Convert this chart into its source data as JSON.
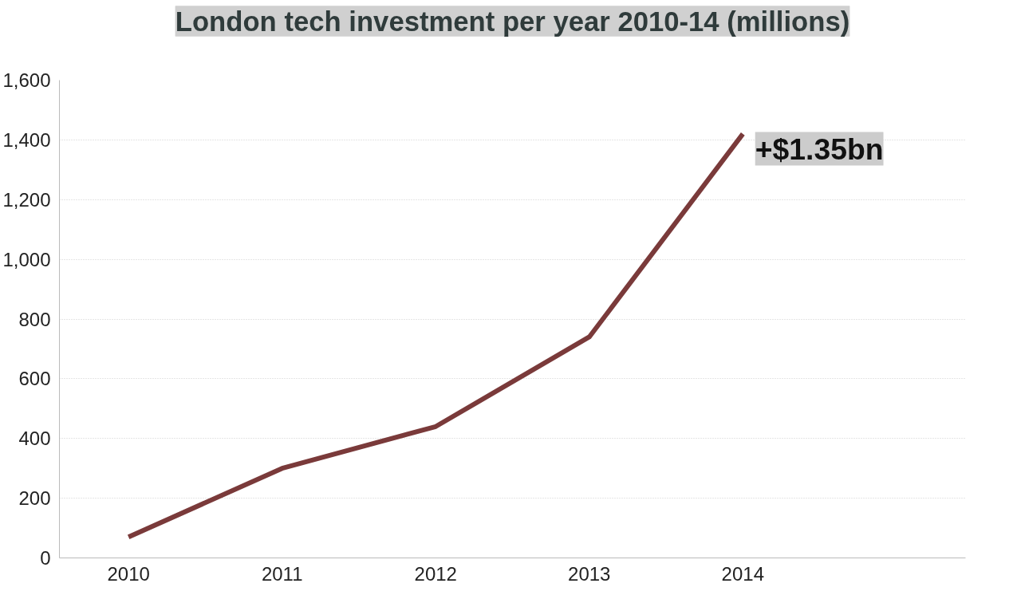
{
  "chart_data": {
    "type": "line",
    "title": "London tech investment per year 2010-14 (millions)",
    "categories": [
      "2010",
      "2011",
      "2012",
      "2013",
      "2014"
    ],
    "series": [
      {
        "color": "#7a3a3a",
        "values": [
          70,
          300,
          440,
          740,
          1420
        ]
      }
    ],
    "ylim": [
      0,
      1600
    ],
    "yticks": [
      0,
      {
        "value": 200,
        "label": "200"
      },
      400,
      600,
      800,
      {
        "value": 1000,
        "label": "1,000"
      },
      {
        "value": 1200,
        "label": "1,200"
      },
      {
        "value": 1400,
        "label": "1,400"
      },
      {
        "value": 1600,
        "label": "1,600"
      }
    ],
    "grid": "y",
    "marker": "none",
    "line_style": "solid",
    "annotations": [
      {
        "text": "+$1.35bn",
        "x": "2014",
        "y": 1420
      }
    ]
  }
}
